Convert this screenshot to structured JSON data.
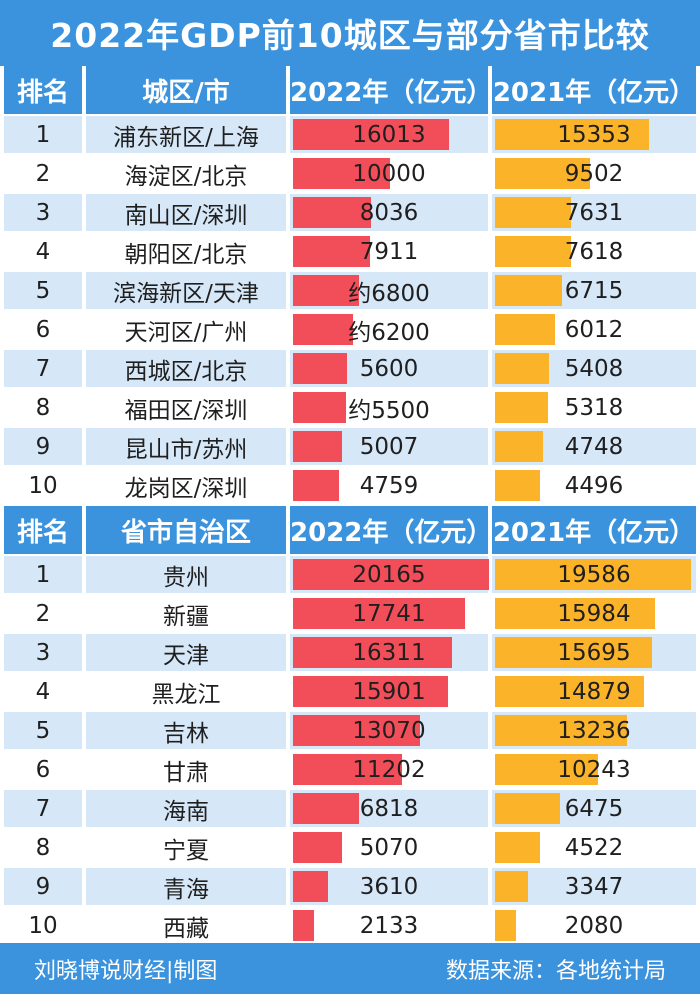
{
  "title": "2022年GDP前10城区与部分省市比较",
  "colors": {
    "header": "#3b93dd",
    "stripe": "#d6e7f8",
    "bar_2022": "#f24e5a",
    "bar_2021": "#fbb42a"
  },
  "districts": {
    "headers": {
      "rank": "排名",
      "name": "城区/市",
      "y2022": "2022年（亿元）",
      "y2021": "2021年（亿元）"
    },
    "rows": [
      {
        "rank": "1",
        "name": "浦东新区/上海",
        "v2022": "16013",
        "v2021": "15353"
      },
      {
        "rank": "2",
        "name": "海淀区/北京",
        "v2022": "10000",
        "v2021": "9502"
      },
      {
        "rank": "3",
        "name": "南山区/深圳",
        "v2022": "8036",
        "v2021": "7631"
      },
      {
        "rank": "4",
        "name": "朝阳区/北京",
        "v2022": "7911",
        "v2021": "7618"
      },
      {
        "rank": "5",
        "name": "滨海新区/天津",
        "v2022": "约6800",
        "v2021": "6715"
      },
      {
        "rank": "6",
        "name": "天河区/广州",
        "v2022": "约6200",
        "v2021": "6012"
      },
      {
        "rank": "7",
        "name": "西城区/北京",
        "v2022": "5600",
        "v2021": "5408"
      },
      {
        "rank": "8",
        "name": "福田区/深圳",
        "v2022": "约5500",
        "v2021": "5318"
      },
      {
        "rank": "9",
        "name": "昆山市/苏州",
        "v2022": "5007",
        "v2021": "4748"
      },
      {
        "rank": "10",
        "name": "龙岗区/深圳",
        "v2022": "4759",
        "v2021": "4496"
      }
    ]
  },
  "provinces": {
    "headers": {
      "rank": "排名",
      "name": "省市自治区",
      "y2022": "2022年（亿元）",
      "y2021": "2021年（亿元）"
    },
    "rows": [
      {
        "rank": "1",
        "name": "贵州",
        "v2022": "20165",
        "v2021": "19586"
      },
      {
        "rank": "2",
        "name": "新疆",
        "v2022": "17741",
        "v2021": "15984"
      },
      {
        "rank": "3",
        "name": "天津",
        "v2022": "16311",
        "v2021": "15695"
      },
      {
        "rank": "4",
        "name": "黑龙江",
        "v2022": "15901",
        "v2021": "14879"
      },
      {
        "rank": "5",
        "name": "吉林",
        "v2022": "13070",
        "v2021": "13236"
      },
      {
        "rank": "6",
        "name": "甘肃",
        "v2022": "11202",
        "v2021": "10243"
      },
      {
        "rank": "7",
        "name": "海南",
        "v2022": "6818",
        "v2021": "6475"
      },
      {
        "rank": "8",
        "name": "宁夏",
        "v2022": "5070",
        "v2021": "4522"
      },
      {
        "rank": "9",
        "name": "青海",
        "v2022": "3610",
        "v2021": "3347"
      },
      {
        "rank": "10",
        "name": "西藏",
        "v2022": "2133",
        "v2021": "2080"
      }
    ]
  },
  "footer": {
    "credit": "刘晓博说财经|制图",
    "source": "数据来源：各地统计局"
  },
  "chart_data": {
    "type": "bar",
    "title": "2022年GDP前10城区与部分省市比较",
    "unit": "亿元",
    "series": [
      {
        "name": "2022年（亿元）",
        "categories": [
          "浦东新区/上海",
          "海淀区/北京",
          "南山区/深圳",
          "朝阳区/北京",
          "滨海新区/天津",
          "天河区/广州",
          "西城区/北京",
          "福田区/深圳",
          "昆山市/苏州",
          "龙岗区/深圳",
          "贵州",
          "新疆",
          "天津",
          "黑龙江",
          "吉林",
          "甘肃",
          "海南",
          "宁夏",
          "青海",
          "西藏"
        ],
        "values": [
          16013,
          10000,
          8036,
          7911,
          6800,
          6200,
          5600,
          5500,
          5007,
          4759,
          20165,
          17741,
          16311,
          15901,
          13070,
          11202,
          6818,
          5070,
          3610,
          2133
        ]
      },
      {
        "name": "2021年（亿元）",
        "categories": [
          "浦东新区/上海",
          "海淀区/北京",
          "南山区/深圳",
          "朝阳区/北京",
          "滨海新区/天津",
          "天河区/广州",
          "西城区/北京",
          "福田区/深圳",
          "昆山市/苏州",
          "龙岗区/深圳",
          "贵州",
          "新疆",
          "天津",
          "黑龙江",
          "吉林",
          "甘肃",
          "海南",
          "宁夏",
          "青海",
          "西藏"
        ],
        "values": [
          15353,
          9502,
          7631,
          7618,
          6715,
          6012,
          5408,
          5318,
          4748,
          4496,
          19586,
          15984,
          15695,
          14879,
          13236,
          10243,
          6475,
          4522,
          3347,
          2080
        ]
      }
    ]
  }
}
